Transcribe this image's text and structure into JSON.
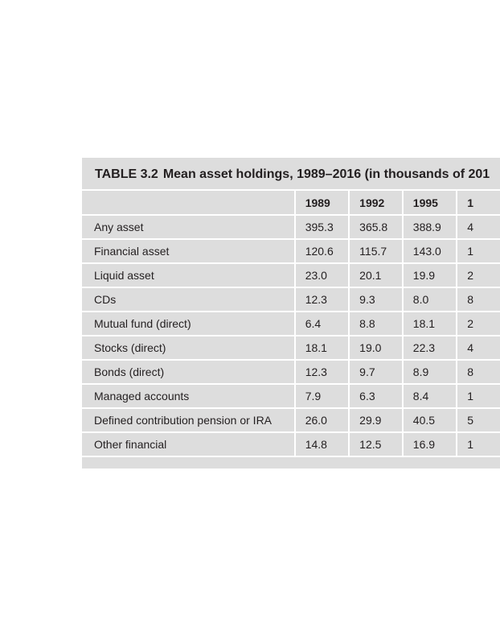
{
  "table": {
    "caption": {
      "label": "TABLE 3.2",
      "text": "Mean asset holdings, 1989–2016 (in thousands of 201"
    },
    "header": [
      "1989",
      "1992",
      "1995",
      "1"
    ],
    "rows": [
      {
        "label": "Any asset",
        "values": [
          "395.3",
          "365.8",
          "388.9",
          "4"
        ]
      },
      {
        "label": "Financial asset",
        "values": [
          "120.6",
          "115.7",
          "143.0",
          "1"
        ]
      },
      {
        "label": "Liquid asset",
        "values": [
          "23.0",
          "20.1",
          "19.9",
          "2"
        ]
      },
      {
        "label": "CDs",
        "values": [
          "12.3",
          "9.3",
          "8.0",
          "8"
        ]
      },
      {
        "label": "Mutual fund (direct)",
        "values": [
          "6.4",
          "8.8",
          "18.1",
          "2"
        ]
      },
      {
        "label": "Stocks (direct)",
        "values": [
          "18.1",
          "19.0",
          "22.3",
          "4"
        ]
      },
      {
        "label": "Bonds (direct)",
        "values": [
          "12.3",
          "9.7",
          "8.9",
          "8"
        ]
      },
      {
        "label": "Managed accounts",
        "values": [
          "7.9",
          "6.3",
          "8.4",
          "1"
        ]
      },
      {
        "label": "Defined contribution pension or IRA",
        "values": [
          "26.0",
          "29.9",
          "40.5",
          "5"
        ]
      },
      {
        "label": "Other financial",
        "values": [
          "14.8",
          "12.5",
          "16.9",
          "1"
        ]
      }
    ]
  }
}
